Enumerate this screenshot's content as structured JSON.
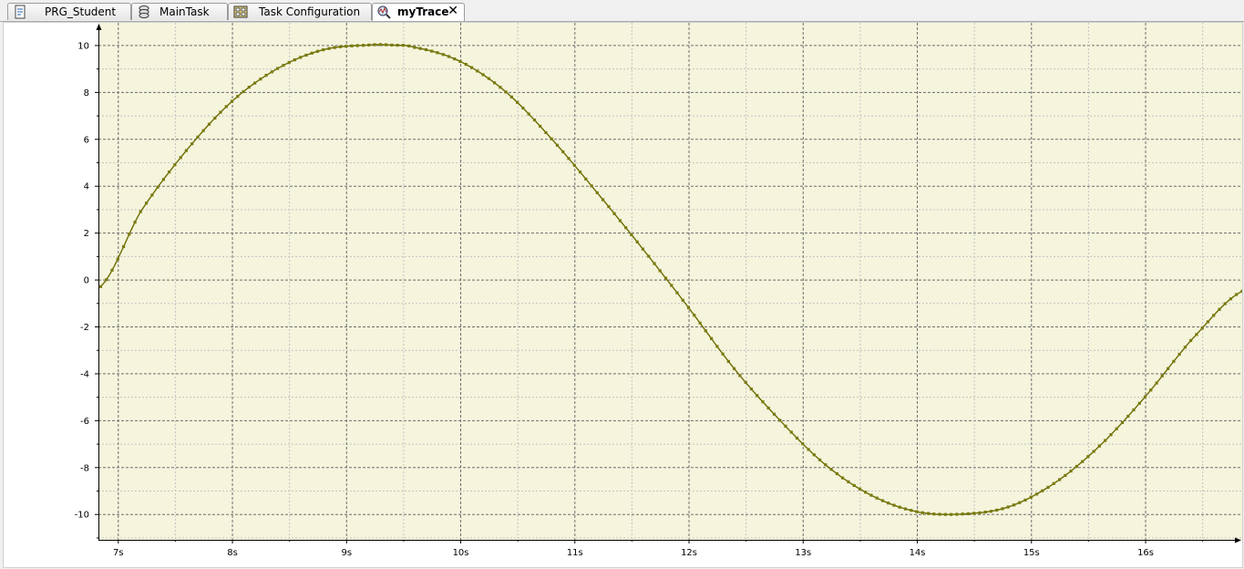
{
  "tabs": [
    {
      "label": "PRG_Student",
      "icon": "program-icon",
      "active": false
    },
    {
      "label": "MainTask",
      "icon": "task-icon",
      "active": false
    },
    {
      "label": "Task Configuration",
      "icon": "task-configuration-icon",
      "active": false
    },
    {
      "label": "myTrace",
      "icon": "trace-icon",
      "active": true,
      "close_label": "✕"
    }
  ],
  "colors": {
    "plot_background": "#f5f4dc",
    "grid_major": "#6e6e6e",
    "grid_minor": "#c4c4c4",
    "trace": "#6b6b00",
    "trace_marker": "#7a7a10"
  },
  "chart_data": {
    "type": "line",
    "title": "",
    "xlabel": "",
    "ylabel": "",
    "x_unit": "s",
    "xlim": [
      6.83,
      16.85
    ],
    "ylim": [
      -11.1,
      10.95
    ],
    "x_ticks": [
      "7s",
      "8s",
      "9s",
      "10s",
      "11s",
      "12s",
      "13s",
      "14s",
      "15s",
      "16s"
    ],
    "y_ticks": [
      "10",
      "8",
      "6",
      "4",
      "2",
      "0",
      "-2",
      "-4",
      "-6",
      "-8",
      "-10"
    ],
    "grid": true,
    "markers": true,
    "series": [
      {
        "x": [
          6.85,
          7.2,
          7.6,
          8.0,
          8.4,
          8.8,
          9.2,
          9.4,
          9.6,
          10.0,
          10.4,
          10.8,
          11.2,
          11.6,
          12.0,
          12.4,
          12.8,
          13.2,
          13.6,
          14.0,
          14.4,
          14.8,
          15.2,
          15.6,
          16.0,
          16.4,
          16.85
        ],
        "y": [
          -0.3,
          2.9,
          5.5,
          7.6,
          9.0,
          9.8,
          10.0,
          10.0,
          9.9,
          9.3,
          8.0,
          6.0,
          3.7,
          1.3,
          -1.2,
          -3.8,
          -6.0,
          -7.9,
          -9.2,
          -9.9,
          -10.0,
          -9.7,
          -8.7,
          -7.1,
          -5.0,
          -2.6,
          -0.5
        ]
      }
    ]
  }
}
